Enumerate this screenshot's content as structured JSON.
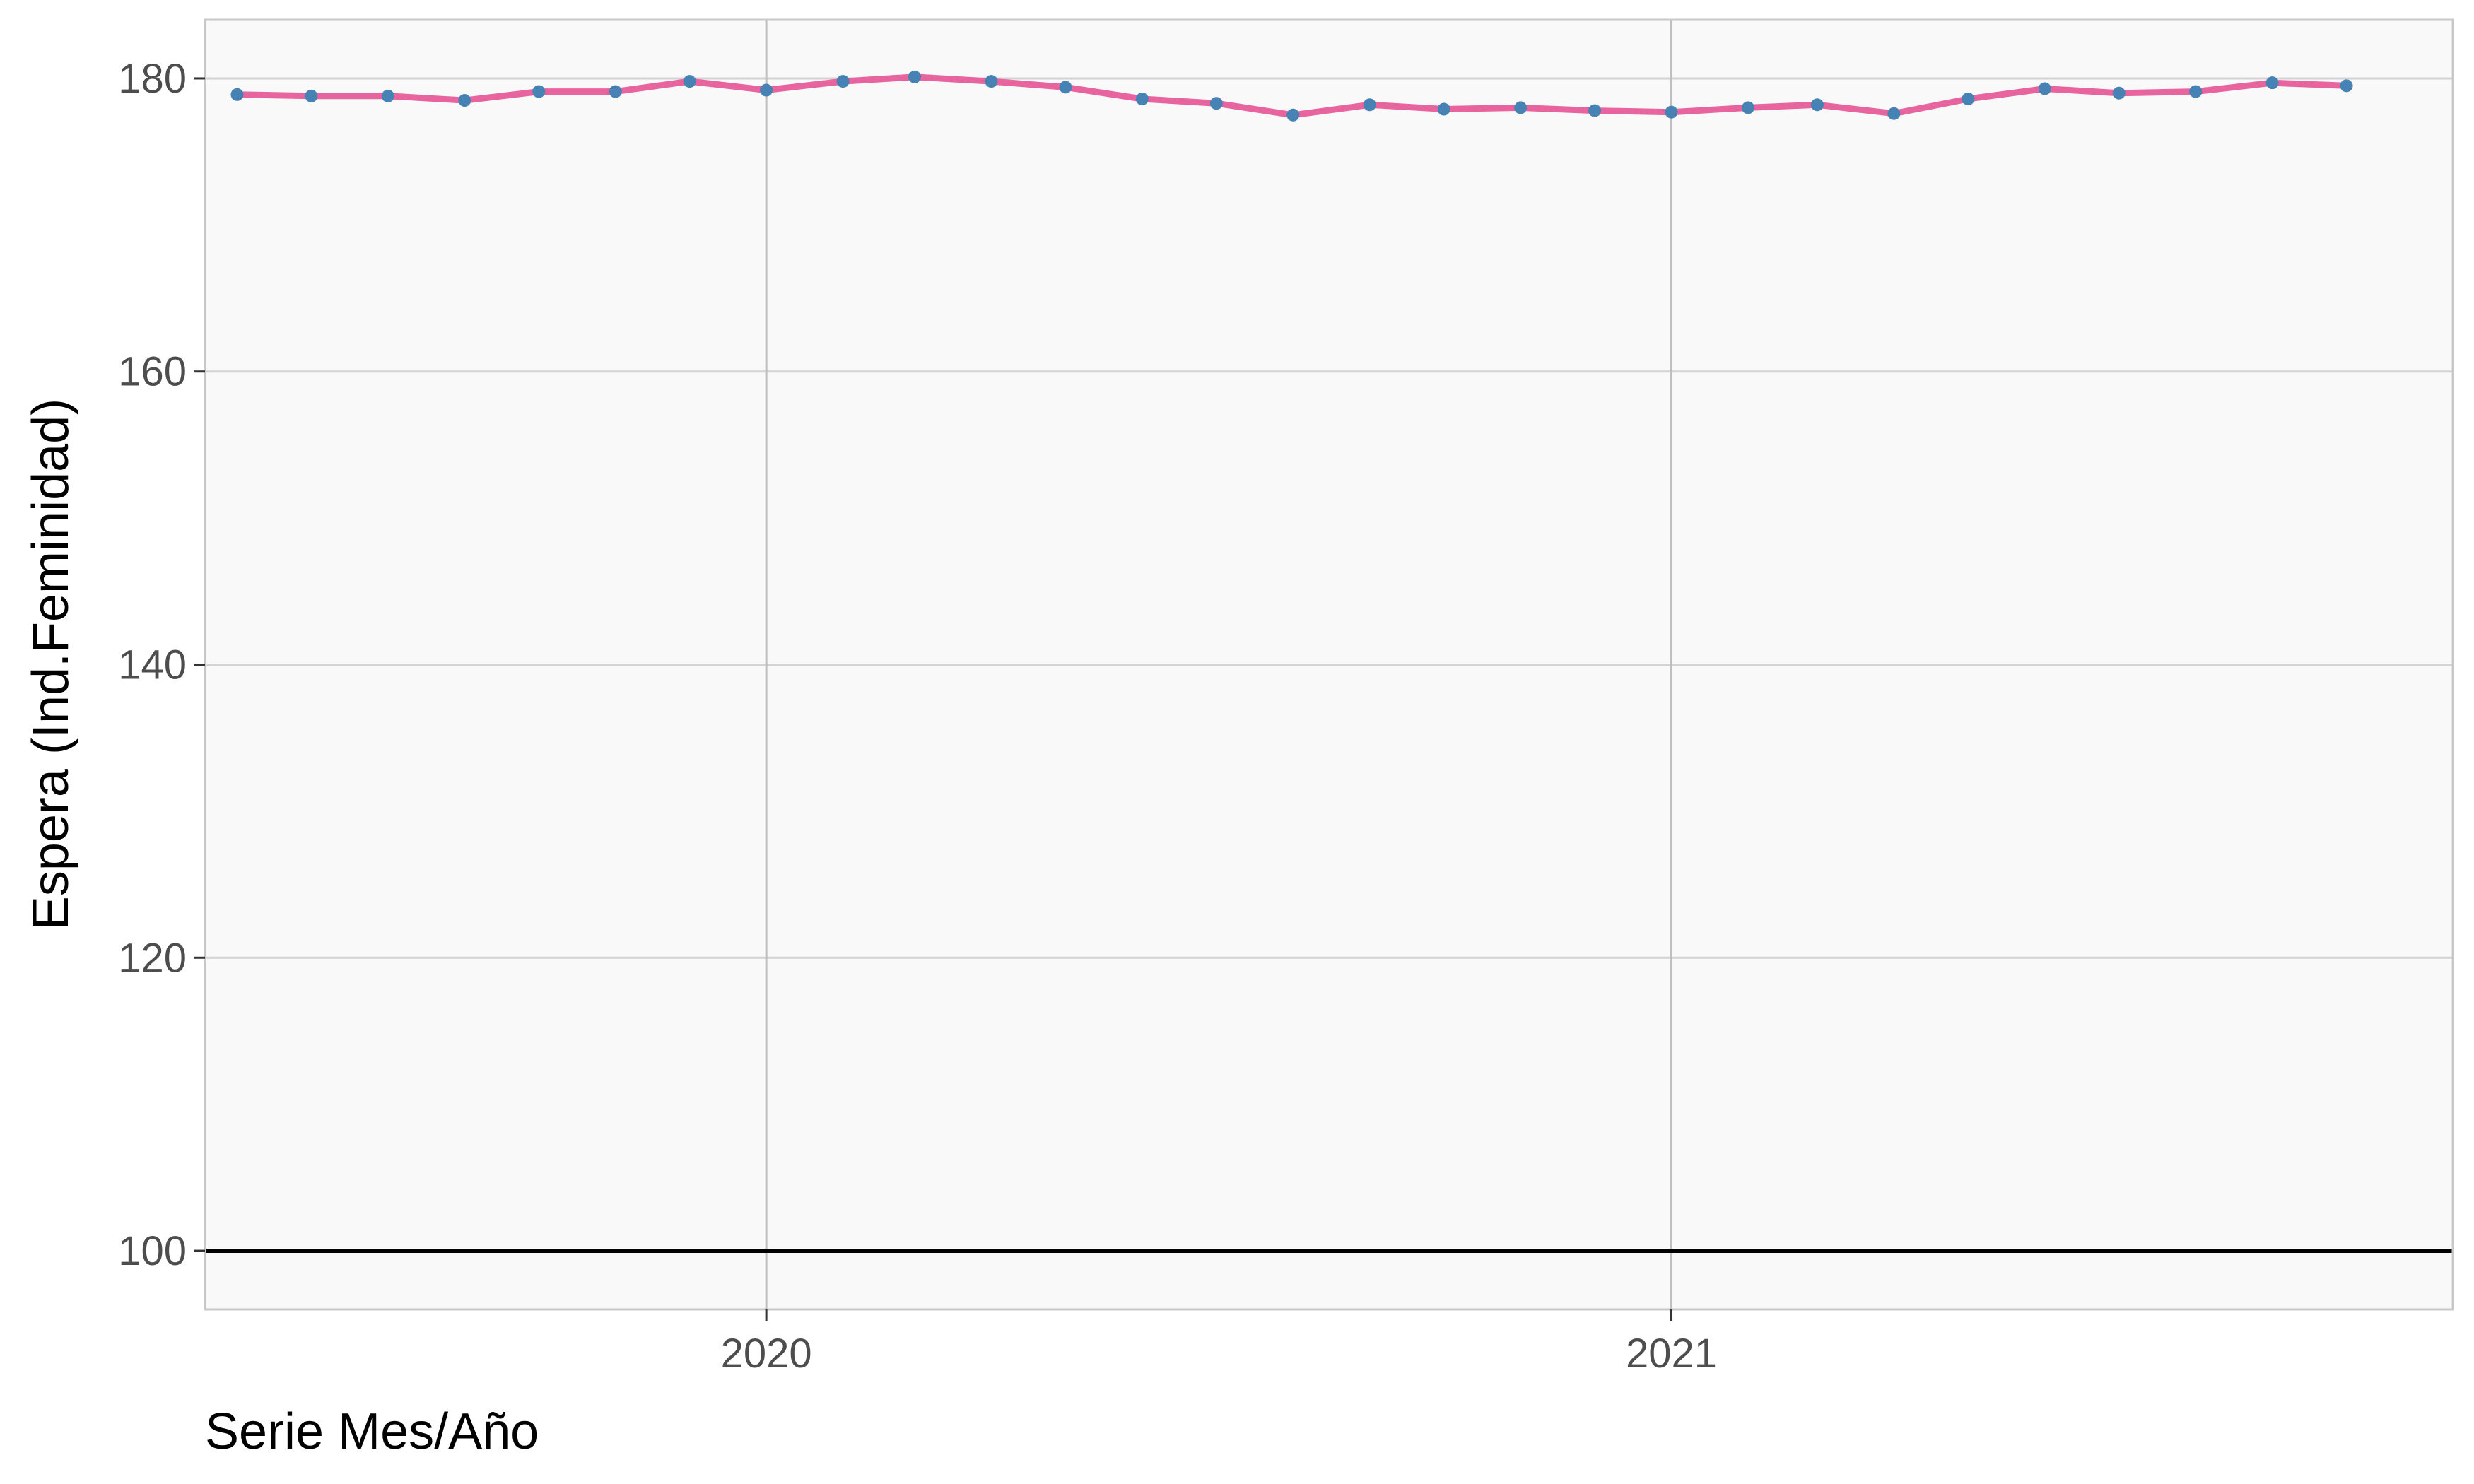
{
  "chart_data": {
    "type": "line",
    "title": "",
    "xlabel": "Serie Mes/Año",
    "ylabel": "Espera (Ind.Feminidad)",
    "x_ticks": [
      "2020",
      "2021"
    ],
    "y_ticks": [
      100,
      120,
      140,
      160,
      180
    ],
    "ylim": [
      96,
      184
    ],
    "xlim": [
      "2019-05-19",
      "2021-11-13"
    ],
    "reference_line": {
      "y": 100,
      "color": "#000000"
    },
    "grid": true,
    "legend": "none",
    "series": [
      {
        "line_color": "#e8649e",
        "point_color": "#4682b4",
        "x": [
          "2019-06-01",
          "2019-07-01",
          "2019-08-01",
          "2019-09-01",
          "2019-10-01",
          "2019-11-01",
          "2019-12-01",
          "2020-01-01",
          "2020-02-01",
          "2020-03-01",
          "2020-04-01",
          "2020-05-01",
          "2020-06-01",
          "2020-07-01",
          "2020-08-01",
          "2020-09-01",
          "2020-10-01",
          "2020-11-01",
          "2020-12-01",
          "2021-01-01",
          "2021-02-01",
          "2021-03-01",
          "2021-04-01",
          "2021-05-01",
          "2021-06-01",
          "2021-07-01",
          "2021-08-01",
          "2021-09-01",
          "2021-10-01"
        ],
        "values": [
          178.9,
          178.8,
          178.8,
          178.5,
          179.1,
          179.1,
          179.8,
          179.2,
          179.8,
          180.1,
          179.8,
          179.4,
          178.6,
          178.3,
          177.5,
          178.2,
          177.9,
          178.0,
          177.8,
          177.7,
          178.0,
          178.2,
          177.6,
          178.6,
          179.3,
          179.0,
          179.1,
          179.7,
          179.5
        ]
      }
    ]
  },
  "colors": {
    "panel_background": "#f9f9f9",
    "grid_major": "#d3d3d3",
    "grid_x": "#bebebe",
    "panel_border": "#c8c8c8"
  }
}
